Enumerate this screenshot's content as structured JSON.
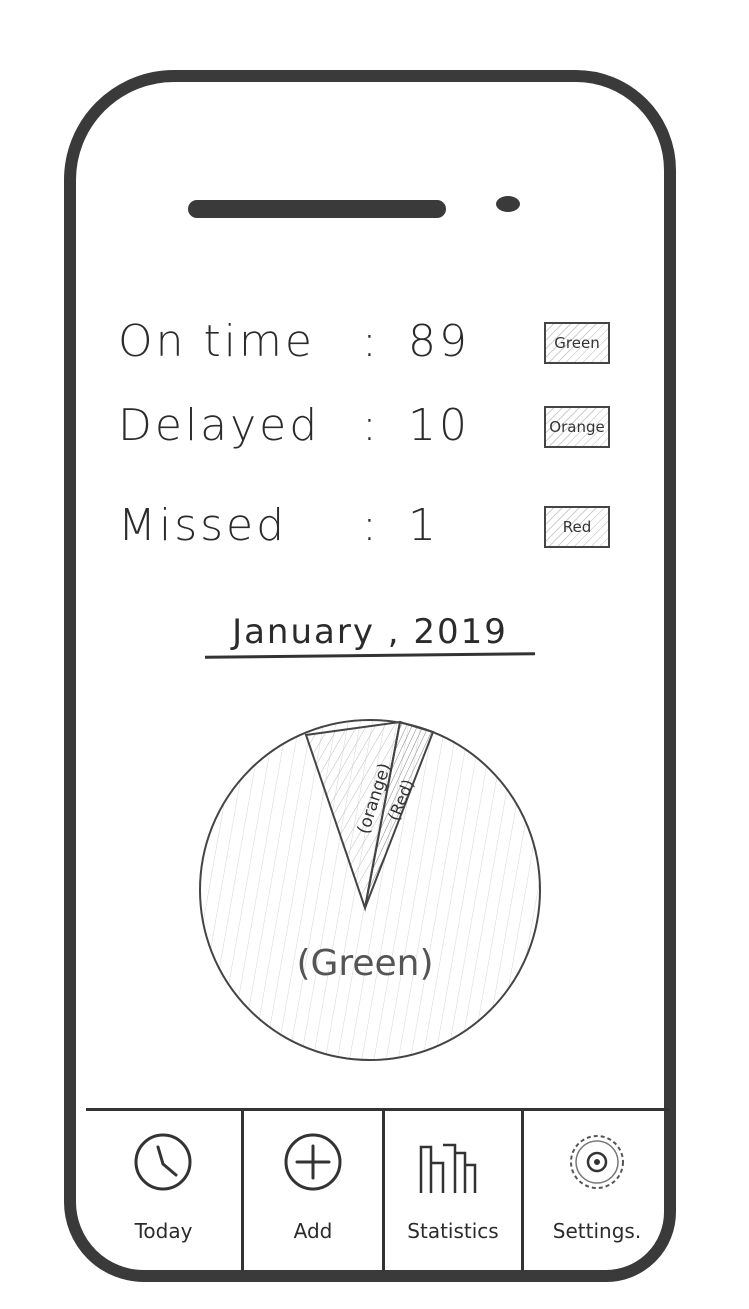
{
  "stats": [
    {
      "label": "On time",
      "colon": ":",
      "value": "89",
      "swatch": "Green"
    },
    {
      "label": "Delayed",
      "colon": ":",
      "value": "10",
      "swatch": "Orange"
    },
    {
      "label": "Missed",
      "colon": ":",
      "value": "1",
      "swatch": "Red"
    }
  ],
  "month": "January , 2019",
  "pie": {
    "green_label": "(Green)",
    "orange_label": "(orange)",
    "red_label": "(Red)",
    "values": {
      "green": 89,
      "orange": 10,
      "red": 1
    }
  },
  "tabs": [
    {
      "label": "Today",
      "icon": "clock-icon"
    },
    {
      "label": "Add",
      "icon": "plus-circle-icon"
    },
    {
      "label": "Statistics",
      "icon": "bar-chart-icon"
    },
    {
      "label": "Settings.",
      "icon": "gear-icon"
    }
  ]
}
